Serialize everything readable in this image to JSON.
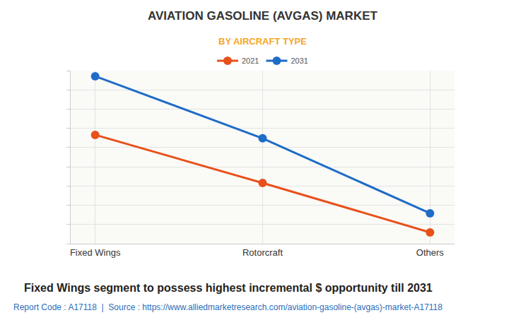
{
  "chart_data": {
    "type": "line",
    "title": "AVIATION GASOLINE (AVGAS) MARKET",
    "subtitle": "BY AIRCRAFT TYPE",
    "caption": "Fixed Wings segment to possess highest incremental $ opportunity till 2031",
    "source": "Report Code : A17118  |  Source : https://www.alliedmarketresearch.com/aviation-gasoline-(avgas)-market-A17118",
    "categories": [
      "Fixed Wings",
      "Rotorcraft",
      "Others"
    ],
    "series": [
      {
        "name": "2021",
        "color": "#e8501a",
        "values": [
          5.66,
          3.16,
          0.59
        ]
      },
      {
        "name": "2031",
        "color": "#1f6cc7",
        "values": [
          8.71,
          5.48,
          1.58
        ]
      }
    ],
    "ylim": [
      0,
      9
    ],
    "yticks": [
      0,
      1,
      2,
      3,
      4,
      5,
      6,
      7,
      8,
      9
    ],
    "grid": true,
    "legend": "top",
    "tick_labels": "x",
    "marker": "circle",
    "line_style": "solid"
  }
}
